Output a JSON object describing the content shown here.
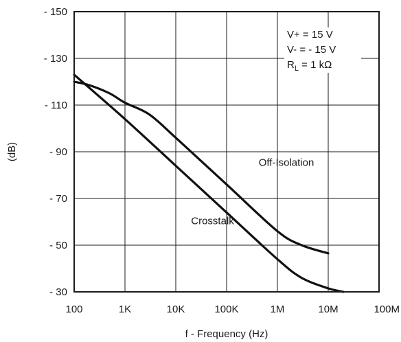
{
  "chart_data": {
    "type": "line",
    "xlabel": "f - Frequency (Hz)",
    "ylabel": "(dB)",
    "x_scale": "log",
    "xlim": [
      100,
      100000000
    ],
    "ylim": [
      -30,
      -150
    ],
    "grid": true,
    "x_ticks": [
      {
        "value": 100,
        "label": "100"
      },
      {
        "value": 1000,
        "label": "1K"
      },
      {
        "value": 10000,
        "label": "10K"
      },
      {
        "value": 100000,
        "label": "100K"
      },
      {
        "value": 1000000,
        "label": "1M"
      },
      {
        "value": 10000000,
        "label": "10M"
      },
      {
        "value": 100000000,
        "label": "100M"
      }
    ],
    "y_ticks": [
      {
        "value": -150,
        "label": "- 150"
      },
      {
        "value": -130,
        "label": "- 130"
      },
      {
        "value": -110,
        "label": "- 110"
      },
      {
        "value": -90,
        "label": "- 90"
      },
      {
        "value": -70,
        "label": "- 70"
      },
      {
        "value": -50,
        "label": "- 50"
      },
      {
        "value": -30,
        "label": "- 30"
      }
    ],
    "conditions": {
      "line1": "V+ = 15 V",
      "line2": "V- = - 15 V",
      "line3_main": "R",
      "line3_sub": "L",
      "line3_rest": " = 1 kΩ"
    },
    "series": [
      {
        "name": "Off-Isolation",
        "x": [
          100,
          200,
          500,
          1000,
          3000,
          10000,
          100000,
          1000000,
          3000000,
          10000000
        ],
        "y": [
          -120,
          -118.5,
          -115,
          -111,
          -106,
          -96,
          -76,
          -56,
          -50,
          -46.5
        ]
      },
      {
        "name": "Crosstalk",
        "x": [
          100,
          1000,
          10000,
          100000,
          1000000,
          3000000,
          10000000,
          20000000
        ],
        "y": [
          -123,
          -104,
          -84,
          -64,
          -44,
          -36,
          -31.5,
          -30
        ]
      }
    ]
  }
}
